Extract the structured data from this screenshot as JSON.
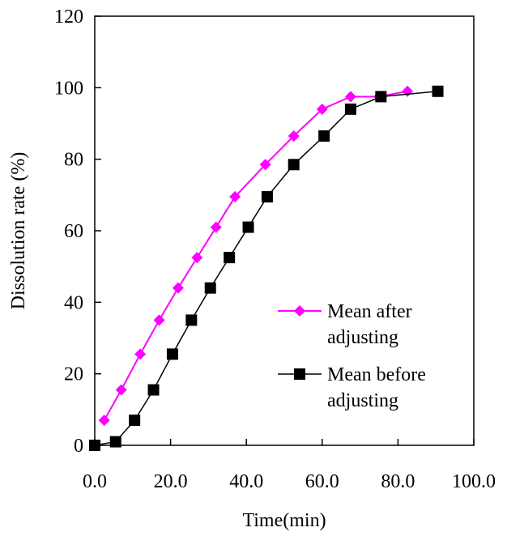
{
  "chart_data": {
    "type": "line",
    "xlabel": "Time(min)",
    "ylabel": "Dissolution rate (%)",
    "xlim": [
      0,
      100
    ],
    "ylim": [
      0,
      120
    ],
    "x_ticks": [
      "0.0",
      "20.0",
      "40.0",
      "60.0",
      "80.0",
      "100.0"
    ],
    "y_ticks": [
      "0",
      "20",
      "40",
      "60",
      "80",
      "100",
      "120"
    ],
    "grid": false,
    "legend_position": "lower-right",
    "series": [
      {
        "name": "Mean after adjusting",
        "color": "#ff00ff",
        "marker": "diamond",
        "x": [
          2.5,
          7,
          12,
          17,
          22,
          27,
          32,
          37,
          45,
          52.5,
          60,
          67.5,
          75,
          82.5
        ],
        "y": [
          7,
          15.5,
          25.5,
          35,
          44,
          52.5,
          61,
          69.5,
          78.5,
          86.5,
          94,
          97.5,
          97.5,
          99
        ]
      },
      {
        "name": "Mean before adjusting",
        "color": "#000000",
        "marker": "square",
        "x": [
          0,
          5.5,
          10.5,
          15.5,
          20.5,
          25.5,
          30.5,
          35.5,
          40.5,
          45.5,
          52.5,
          60.5,
          67.5,
          75.5,
          90.5
        ],
        "y": [
          0,
          1,
          7,
          15.5,
          25.5,
          35,
          44,
          52.5,
          61,
          69.5,
          78.5,
          86.5,
          94,
          97.5,
          99
        ]
      }
    ]
  }
}
